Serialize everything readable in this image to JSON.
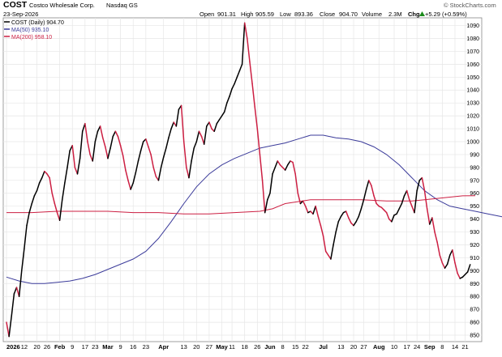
{
  "header": {
    "ticker": "COST",
    "company": "Costco Wholesale Corp.",
    "exchange": "Nasdaq GS",
    "date": "23-Sep-2026",
    "open_label": "Open",
    "open_value": "901.31",
    "high_label": "High",
    "high_value": "905.59",
    "low_label": "Low",
    "low_value": "893.36",
    "close_label": "Close",
    "close_value": "904.70",
    "volume_label": "Volume",
    "volume_value": "2.3M",
    "chg_label": "Chg",
    "chg_value": "+5.29 (+0.59%)",
    "chg_icon": "up-triangle-icon",
    "watermark": "© StockCharts.com"
  },
  "legend": [
    {
      "label": "COST (Daily) 904.70",
      "color": "#000000"
    },
    {
      "label": "MA(50) 935.10",
      "color": "#3b3b9a"
    },
    {
      "label": "MA(200) 958.10",
      "color": "#cc1f42"
    }
  ],
  "chart_data": {
    "type": "line",
    "ylim": [
      845,
      1096
    ],
    "y_ticks": [
      850,
      860,
      870,
      880,
      890,
      900,
      910,
      920,
      930,
      940,
      950,
      960,
      970,
      980,
      990,
      1000,
      1010,
      1020,
      1030,
      1040,
      1050,
      1060,
      1070,
      1080,
      1090
    ],
    "x_range": [
      0,
      185
    ],
    "x_ticks": [
      {
        "i": 0,
        "label": "2026",
        "bold": true
      },
      {
        "i": 7,
        "label": "12"
      },
      {
        "i": 12,
        "label": "20"
      },
      {
        "i": 16,
        "label": "26"
      },
      {
        "i": 21,
        "label": "Feb",
        "bold": true
      },
      {
        "i": 26,
        "label": "9"
      },
      {
        "i": 31,
        "label": "17"
      },
      {
        "i": 35,
        "label": "23"
      },
      {
        "i": 40,
        "label": "Mar",
        "bold": true
      },
      {
        "i": 45,
        "label": "9"
      },
      {
        "i": 50,
        "label": "16"
      },
      {
        "i": 55,
        "label": "23"
      },
      {
        "i": 62,
        "label": "Apr",
        "bold": true
      },
      {
        "i": 70,
        "label": "13"
      },
      {
        "i": 75,
        "label": "20"
      },
      {
        "i": 80,
        "label": "27"
      },
      {
        "i": 85,
        "label": "May",
        "bold": true
      },
      {
        "i": 89,
        "label": "11"
      },
      {
        "i": 94,
        "label": "18"
      },
      {
        "i": 99,
        "label": "26"
      },
      {
        "i": 104,
        "label": "Jun",
        "bold": true
      },
      {
        "i": 109,
        "label": "8"
      },
      {
        "i": 114,
        "label": "15"
      },
      {
        "i": 118,
        "label": "22"
      },
      {
        "i": 125,
        "label": "Jul",
        "bold": true
      },
      {
        "i": 132,
        "label": "13"
      },
      {
        "i": 137,
        "label": "20"
      },
      {
        "i": 141,
        "label": "27"
      },
      {
        "i": 147,
        "label": "Aug",
        "bold": true
      },
      {
        "i": 153,
        "label": "10"
      },
      {
        "i": 158,
        "label": "17"
      },
      {
        "i": 162,
        "label": "24"
      },
      {
        "i": 167,
        "label": "Sep",
        "bold": true
      },
      {
        "i": 172,
        "label": "8"
      },
      {
        "i": 177,
        "label": "14"
      },
      {
        "i": 181,
        "label": "21"
      }
    ],
    "series": [
      {
        "name": "COST (Daily) 904.70",
        "color": "#000000",
        "down_color": "#cc1f42",
        "values": [
          860,
          849,
          865,
          882,
          887,
          880,
          900,
          917,
          935,
          945,
          952,
          958,
          962,
          968,
          972,
          977,
          975,
          972,
          960,
          952,
          945,
          939,
          955,
          968,
          980,
          993,
          997,
          980,
          975,
          987,
          1008,
          1014,
          1000,
          990,
          985,
          1000,
          1008,
          1012,
          1003,
          996,
          987,
          995,
          1004,
          1008,
          1004,
          997,
          989,
          978,
          970,
          963,
          968,
          976,
          985,
          993,
          1000,
          1002,
          996,
          990,
          980,
          973,
          970,
          980,
          988,
          995,
          1003,
          1010,
          1015,
          1012,
          1025,
          1028,
          1000,
          980,
          972,
          985,
          995,
          1000,
          1008,
          1004,
          998,
          1012,
          1015,
          1010,
          1008,
          1014,
          1017,
          1020,
          1023,
          1030,
          1035,
          1041,
          1045,
          1050,
          1055,
          1060,
          1092,
          1080,
          1062,
          1045,
          1027,
          1010,
          990,
          970,
          945,
          955,
          960,
          975,
          980,
          985,
          982,
          980,
          978,
          982,
          985,
          984,
          975,
          960,
          952,
          954,
          950,
          945,
          946,
          944,
          950,
          942,
          935,
          927,
          915,
          912,
          909,
          920,
          930,
          938,
          942,
          945,
          946,
          941,
          937,
          935,
          938,
          942,
          948,
          955,
          963,
          970,
          966,
          958,
          952,
          950,
          949,
          947,
          945,
          940,
          938,
          943,
          944,
          948,
          952,
          958,
          962,
          955,
          950,
          945,
          962,
          970,
          972,
          962,
          948,
          936,
          941,
          930,
          922,
          912,
          906,
          902,
          905,
          912,
          916,
          906,
          898,
          894,
          895,
          897,
          899,
          904.7
        ]
      },
      {
        "name": "MA(50) 935.10",
        "color": "#3b3b9a",
        "values": [
          895,
          892,
          890,
          890,
          891,
          892,
          894,
          897,
          901,
          905,
          909,
          915,
          925,
          938,
          952,
          965,
          975,
          982,
          987,
          991,
          995,
          997,
          999,
          1002,
          1005,
          1005,
          1003,
          1002,
          1000,
          996,
          990,
          982,
          972,
          962,
          955,
          950,
          948,
          946,
          944,
          942,
          940,
          938,
          936,
          935.1
        ],
        "x_positions": [
          0,
          5,
          10,
          15,
          20,
          25,
          30,
          35,
          40,
          45,
          50,
          55,
          60,
          65,
          70,
          75,
          80,
          85,
          90,
          95,
          100,
          105,
          110,
          115,
          120,
          125,
          130,
          135,
          140,
          145,
          150,
          155,
          160,
          165,
          170,
          175,
          180,
          185,
          190,
          195,
          200,
          205,
          210,
          215
        ]
      },
      {
        "name": "MA(200) 958.10",
        "color": "#cc1f42",
        "values": [
          945,
          945,
          946,
          946,
          946,
          945,
          945,
          944,
          944,
          945,
          946,
          948,
          952,
          955,
          955,
          955,
          954,
          954,
          954,
          955,
          956,
          957,
          958,
          958.1
        ],
        "x_positions": [
          0,
          10,
          20,
          30,
          40,
          50,
          60,
          70,
          80,
          90,
          100,
          105,
          110,
          120,
          130,
          140,
          150,
          155,
          160,
          165,
          170,
          175,
          180,
          185
        ]
      }
    ]
  }
}
